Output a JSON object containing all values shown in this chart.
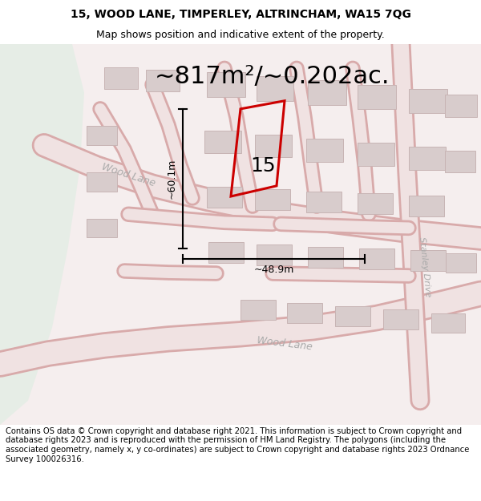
{
  "title_line1": "15, WOOD LANE, TIMPERLEY, ALTRINCHAM, WA15 7QG",
  "title_line2": "Map shows position and indicative extent of the property.",
  "area_text": "~817m²/~0.202ac.",
  "dim_height": "~60.1m",
  "dim_width": "~48.9m",
  "property_label": "15",
  "footer_text": "Contains OS data © Crown copyright and database right 2021. This information is subject to Crown copyright and database rights 2023 and is reproduced with the permission of HM Land Registry. The polygons (including the associated geometry, namely x, y co-ordinates) are subject to Crown copyright and database rights 2023 Ordnance Survey 100026316.",
  "bg_color": "#ffffff",
  "map_bg": "#f5eeee",
  "green_area_color": "#e6ede6",
  "plot_outline_color": "#cc0000",
  "dim_line_color": "#000000",
  "building_fill": "#d8cccc",
  "building_edge": "#c8b4b4",
  "road_fill": "#f0e2e2",
  "road_edge": "#d8aaaa",
  "title_font_size": 10,
  "subtitle_font_size": 9,
  "footer_font_size": 7.2,
  "area_font_size": 22,
  "street_font_size": 9,
  "label_font_size": 18
}
